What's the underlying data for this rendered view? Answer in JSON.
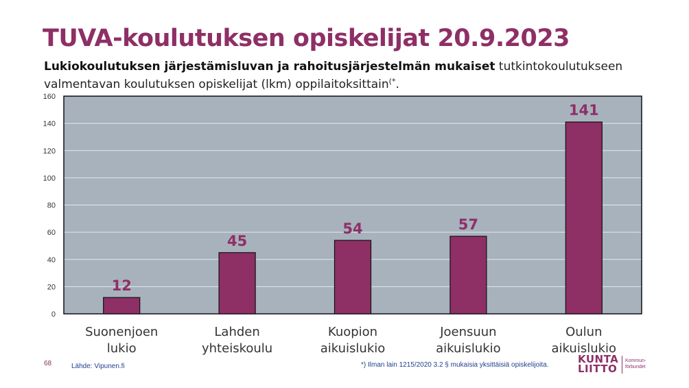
{
  "title": "TUVA-koulutuksen opiskelijat 20.9.2023",
  "subtitle": {
    "bold": "Lukiokoulutuksen järjestämisluvan ja rahoitusjärjestelmän mukaiset",
    "rest": " tutkintokoulutukseen valmentavan koulutuksen opiskelijat (lkm) oppilaitoksittain",
    "sup": "(*",
    "end": "."
  },
  "chart_data": {
    "type": "bar",
    "categories": [
      [
        "Suonenjoen",
        "lukio"
      ],
      [
        "Lahden",
        "yhteiskoulu"
      ],
      [
        "Kuopion",
        "aikuislukio"
      ],
      [
        "Joensuun",
        "aikuislukio"
      ],
      [
        "Oulun",
        "aikuislukio"
      ]
    ],
    "values": [
      12,
      45,
      54,
      57,
      141
    ],
    "yticks": [
      "0",
      "20",
      "40",
      "60",
      "80",
      "100",
      "120",
      "140",
      "160"
    ],
    "ylim": [
      0,
      160
    ],
    "grid": true,
    "data_labels": true,
    "colors": {
      "bar": "#8e2f66",
      "bar_outline": "#111111",
      "plot_background": "#a7b2bd",
      "gridline": "#e4e8ec",
      "label": "#8e2f66"
    }
  },
  "footer": {
    "page": "68",
    "source": "Lähde: Vipunen.fi",
    "note": "*) Ilman lain 1215/2020 3.2 § mukaisia yksittäisiä opiskelijoita."
  },
  "logo": {
    "word1": "KUNTA",
    "word2": "LIITTO",
    "side1": "Kommun-",
    "side2": "förbundet"
  }
}
